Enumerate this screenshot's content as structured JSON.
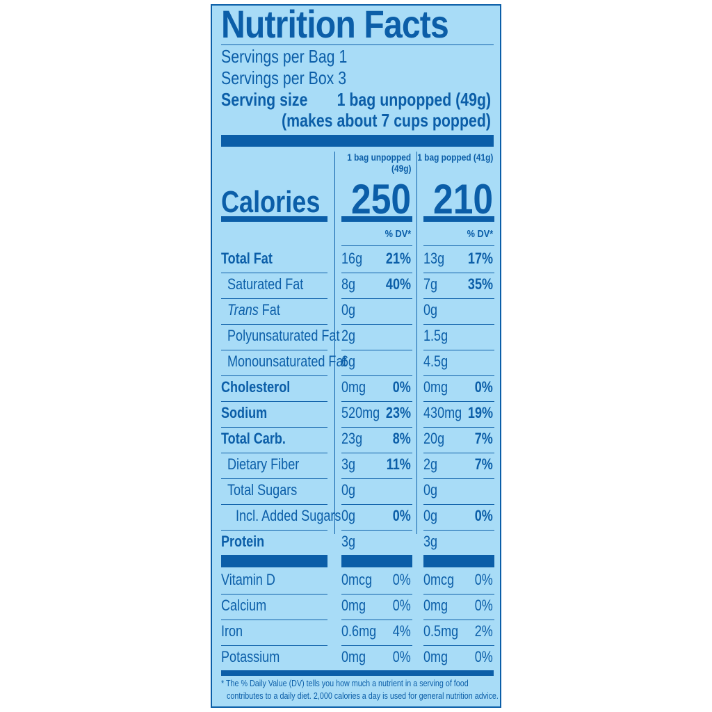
{
  "title": "Nutrition Facts",
  "servings_per_bag": "Servings per Bag 1",
  "servings_per_box": "Servings per Box 3",
  "serving_size_label": "Serving size",
  "serving_size_value": "1 bag unpopped (49g)",
  "serving_size_note": "(makes about 7 cups popped)",
  "col1_header_line1": "1 bag unpopped",
  "col1_header_line2": "(49g)",
  "col2_header": "1 bag popped (41g)",
  "calories_label": "Calories",
  "calories_col1": "250",
  "calories_col2": "210",
  "dv_header": "% DV*",
  "nutrients": [
    {
      "label": "Total Fat",
      "bold": true,
      "indent": 0,
      "a1": "16g",
      "p1": "21%",
      "a2": "13g",
      "p2": "17%"
    },
    {
      "label": "Saturated Fat",
      "bold": false,
      "indent": 1,
      "a1": "8g",
      "p1": "40%",
      "a2": "7g",
      "p2": "35%"
    },
    {
      "label_italic": "Trans",
      "label": " Fat",
      "bold": false,
      "indent": 1,
      "a1": "0g",
      "p1": "",
      "a2": "0g",
      "p2": ""
    },
    {
      "label": "Polyunsaturated Fat",
      "bold": false,
      "indent": 1,
      "a1": "2g",
      "p1": "",
      "a2": "1.5g",
      "p2": ""
    },
    {
      "label": "Monounsaturated Fat",
      "bold": false,
      "indent": 1,
      "a1": "6g",
      "p1": "",
      "a2": "4.5g",
      "p2": ""
    },
    {
      "label": "Cholesterol",
      "bold": true,
      "indent": 0,
      "a1": "0mg",
      "p1": "0%",
      "a2": "0mg",
      "p2": "0%"
    },
    {
      "label": "Sodium",
      "bold": true,
      "indent": 0,
      "a1": "520mg",
      "p1": "23%",
      "a2": "430mg",
      "p2": "19%"
    },
    {
      "label": "Total Carb.",
      "bold": true,
      "indent": 0,
      "a1": "23g",
      "p1": "8%",
      "a2": "20g",
      "p2": "7%"
    },
    {
      "label": "Dietary Fiber",
      "bold": false,
      "indent": 1,
      "a1": "3g",
      "p1": "11%",
      "a2": "2g",
      "p2": "7%"
    },
    {
      "label": "Total Sugars",
      "bold": false,
      "indent": 1,
      "a1": "0g",
      "p1": "",
      "a2": "0g",
      "p2": ""
    },
    {
      "label": "Incl. Added Sugars",
      "bold": false,
      "indent": 2,
      "a1": "0g",
      "p1": "0%",
      "a2": "0g",
      "p2": "0%"
    },
    {
      "label": "Protein",
      "bold": true,
      "indent": 0,
      "a1": "3g",
      "p1": "",
      "a2": "3g",
      "p2": ""
    }
  ],
  "vitamins": [
    {
      "label": "Vitamin D",
      "a1": "0mcg",
      "p1": "0%",
      "a2": "0mcg",
      "p2": "0%"
    },
    {
      "label": "Calcium",
      "a1": "0mg",
      "p1": "0%",
      "a2": "0mg",
      "p2": "0%"
    },
    {
      "label": "Iron",
      "a1": "0.6mg",
      "p1": "4%",
      "a2": "0.5mg",
      "p2": "2%"
    },
    {
      "label": "Potassium",
      "a1": "0mg",
      "p1": "0%",
      "a2": "0mg",
      "p2": "0%"
    }
  ],
  "footnote_line1": "* The % Daily Value (DV) tells you how much a nutrient in a serving of food",
  "footnote_line2": "contributes to a daily diet. 2,000 calories a day is used for general nutrition advice.",
  "colors": {
    "panel": "#a8dcf7",
    "ink": "#0b5ea8"
  }
}
